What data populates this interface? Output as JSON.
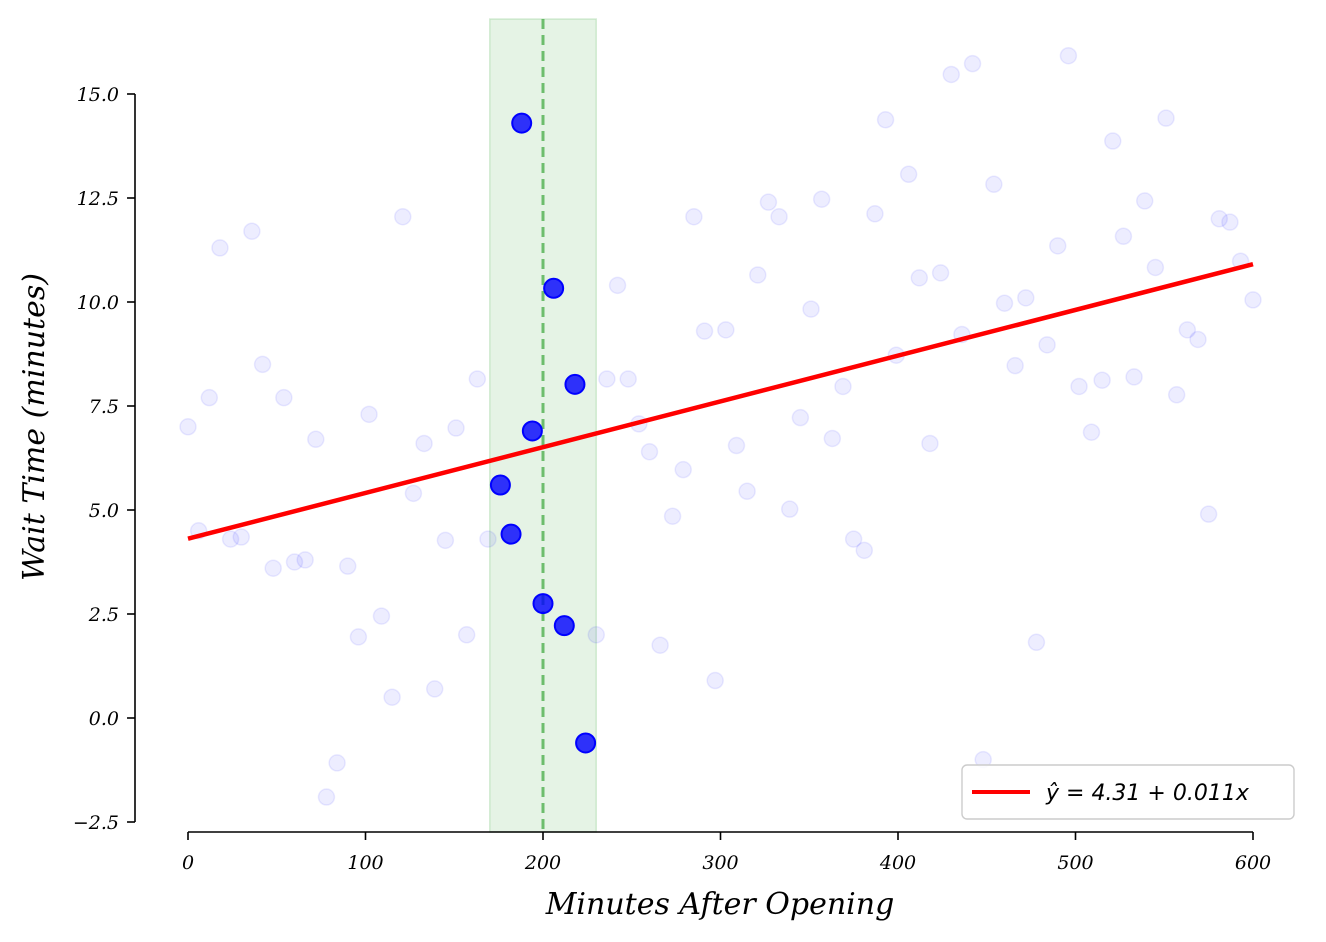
{
  "chart_data": {
    "type": "scatter",
    "xlabel": "Minutes After Opening",
    "ylabel": "Wait Time (minutes)",
    "xlim": [
      -3,
      605
    ],
    "ylim": [
      -2.5,
      16.8
    ],
    "x_ticks": [
      0,
      100,
      200,
      300,
      400,
      500,
      600
    ],
    "x_tick_labels": [
      "0",
      "100",
      "200",
      "300",
      "400",
      "500",
      "600"
    ],
    "y_ticks": [
      -2.5,
      0.0,
      2.5,
      5.0,
      7.5,
      10.0,
      12.5,
      15.0
    ],
    "y_tick_labels": [
      "−2.5",
      "0.0",
      "2.5",
      "5.0",
      "7.5",
      "10.0",
      "12.5",
      "15.0"
    ],
    "grid": false,
    "legend_position": "lower-right",
    "band": {
      "x_range": [
        170,
        230
      ],
      "center": 200,
      "color": "#2ca02c"
    },
    "regression": {
      "intercept": 4.31,
      "slope": 0.011,
      "x_range": [
        0,
        600
      ],
      "label": "ŷ = 4.31 + 0.011x",
      "color": "#ff0000"
    },
    "series": [
      {
        "role": "background",
        "color": "#0000ff",
        "points": [
          [
            0,
            7.0
          ],
          [
            6,
            4.5
          ],
          [
            12,
            7.7
          ],
          [
            18,
            11.3
          ],
          [
            24,
            4.3
          ],
          [
            30,
            4.35
          ],
          [
            36,
            11.7
          ],
          [
            42,
            8.5
          ],
          [
            48,
            3.6
          ],
          [
            54,
            7.7
          ],
          [
            60,
            3.75
          ],
          [
            66,
            3.8
          ],
          [
            72,
            6.7
          ],
          [
            78,
            -1.9
          ],
          [
            84,
            -1.08
          ],
          [
            90,
            3.65
          ],
          [
            96,
            1.95
          ],
          [
            102,
            7.3
          ],
          [
            109,
            2.45
          ],
          [
            115,
            0.5
          ],
          [
            121,
            12.05
          ],
          [
            127,
            5.4
          ],
          [
            133,
            6.6
          ],
          [
            139,
            0.7
          ],
          [
            145,
            4.27
          ],
          [
            151,
            6.97
          ],
          [
            157,
            2.0
          ],
          [
            163,
            8.15
          ],
          [
            169,
            4.3
          ],
          [
            230,
            2.0
          ],
          [
            236,
            8.15
          ],
          [
            242,
            10.4
          ],
          [
            248,
            8.15
          ],
          [
            254,
            7.07
          ],
          [
            260,
            6.4
          ],
          [
            266,
            1.75
          ],
          [
            273,
            4.85
          ],
          [
            279,
            5.97
          ],
          [
            285,
            12.05
          ],
          [
            291,
            9.3
          ],
          [
            297,
            0.9
          ],
          [
            303,
            9.33
          ],
          [
            309,
            6.55
          ],
          [
            315,
            5.45
          ],
          [
            321,
            10.65
          ],
          [
            327,
            12.4
          ],
          [
            333,
            12.05
          ],
          [
            339,
            5.02
          ],
          [
            345,
            7.22
          ],
          [
            351,
            9.83
          ],
          [
            357,
            12.47
          ],
          [
            363,
            6.72
          ],
          [
            369,
            7.97
          ],
          [
            375,
            4.3
          ],
          [
            381,
            4.03
          ],
          [
            387,
            12.12
          ],
          [
            393,
            14.38
          ],
          [
            399,
            8.72
          ],
          [
            406,
            13.07
          ],
          [
            412,
            10.58
          ],
          [
            418,
            6.6
          ],
          [
            424,
            10.7
          ],
          [
            430,
            15.47
          ],
          [
            436,
            9.22
          ],
          [
            442,
            15.73
          ],
          [
            448,
            -1.0
          ],
          [
            454,
            12.83
          ],
          [
            460,
            9.97
          ],
          [
            466,
            8.47
          ],
          [
            472,
            10.1
          ],
          [
            478,
            1.82
          ],
          [
            484,
            8.97
          ],
          [
            490,
            11.35
          ],
          [
            496,
            15.92
          ],
          [
            502,
            7.97
          ],
          [
            509,
            6.87
          ],
          [
            515,
            8.12
          ],
          [
            521,
            13.87
          ],
          [
            527,
            11.58
          ],
          [
            533,
            8.2
          ],
          [
            539,
            12.43
          ],
          [
            545,
            10.83
          ],
          [
            551,
            14.42
          ],
          [
            557,
            7.77
          ],
          [
            563,
            9.33
          ],
          [
            569,
            9.1
          ],
          [
            575,
            4.9
          ],
          [
            581,
            12.0
          ],
          [
            587,
            11.92
          ],
          [
            593,
            10.98
          ],
          [
            600,
            10.05
          ]
        ]
      },
      {
        "role": "highlighted",
        "color": "#0000ff",
        "points": [
          [
            176,
            5.6
          ],
          [
            182,
            4.42
          ],
          [
            188,
            14.3
          ],
          [
            194,
            6.9
          ],
          [
            200,
            2.75
          ],
          [
            206,
            10.33
          ],
          [
            212,
            2.22
          ],
          [
            218,
            8.02
          ],
          [
            224,
            -0.6
          ]
        ]
      }
    ]
  }
}
